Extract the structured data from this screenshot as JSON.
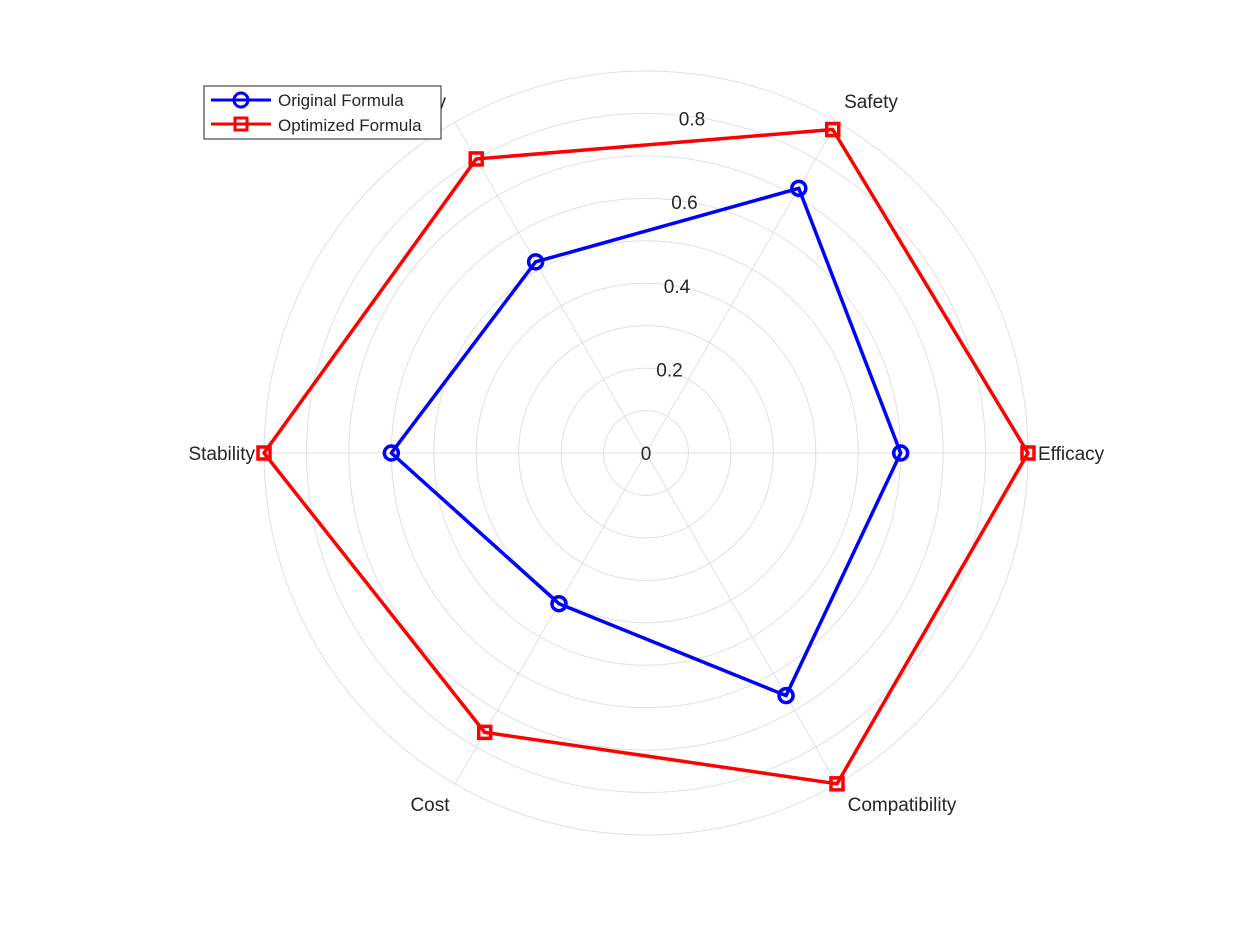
{
  "chart_data": {
    "type": "radar",
    "categories": [
      "Efficacy",
      "Safety",
      "",
      "Stability",
      "Cost",
      "Compatibility"
    ],
    "rlim": [
      0,
      0.9
    ],
    "rticks": [
      0,
      0.2,
      0.4,
      0.6,
      0.8
    ],
    "rtick_labels": [
      "0",
      "0.2",
      "0.4",
      "0.6",
      "0.8"
    ],
    "grid": true,
    "legend_position": "top-left",
    "series": [
      {
        "name": "Original Formula",
        "values": [
          0.6,
          0.72,
          0.52,
          0.6,
          0.41,
          0.66
        ],
        "color": "#0000ff",
        "marker": "circle"
      },
      {
        "name": "Optimized Formula",
        "values": [
          0.9,
          0.88,
          0.8,
          0.9,
          0.76,
          0.9
        ],
        "color": "#ff0000",
        "marker": "square"
      }
    ],
    "partial_category_label": "y",
    "colors": {
      "grid": "#e0e0e0",
      "text": "#262626"
    }
  }
}
